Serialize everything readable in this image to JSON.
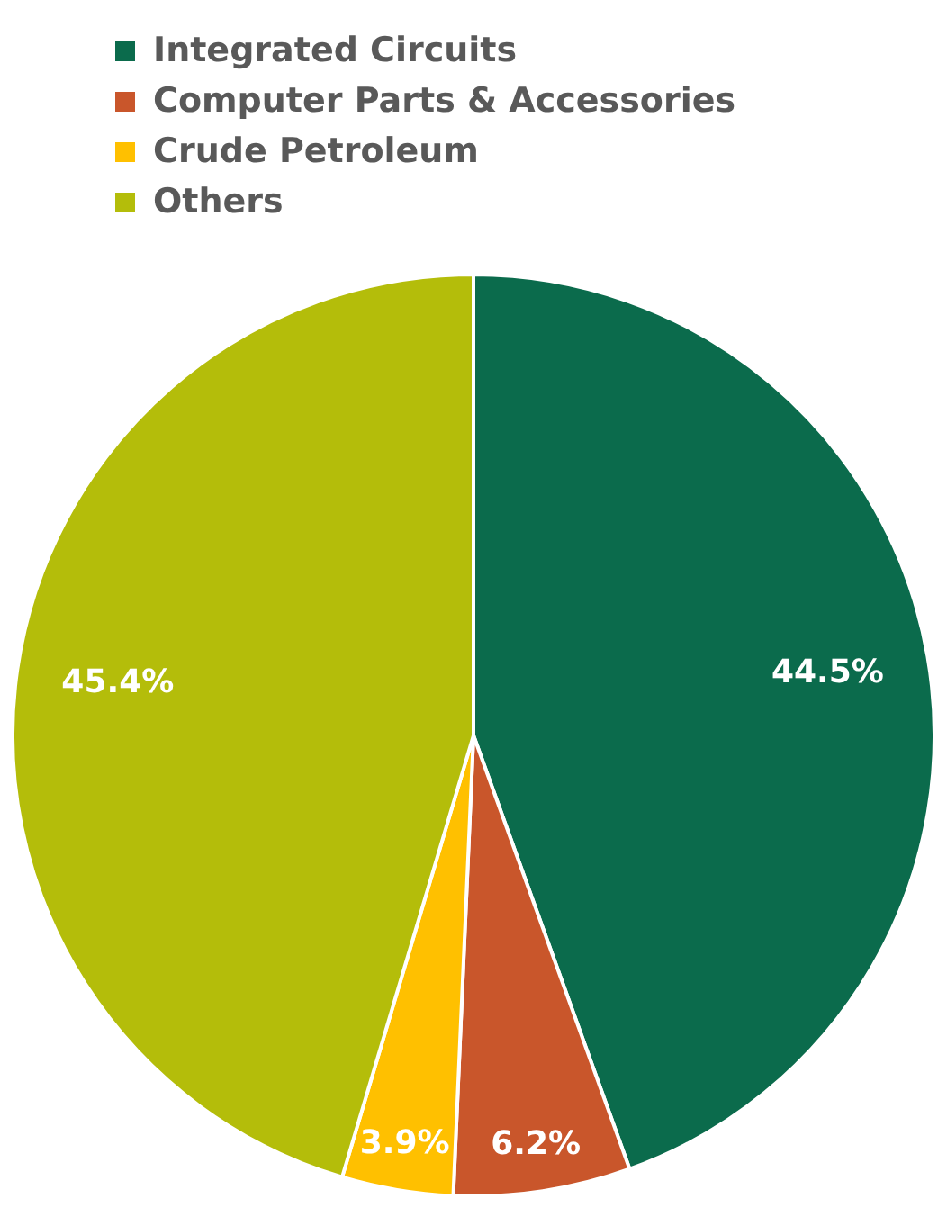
{
  "chart_data": {
    "type": "pie",
    "categories": [
      "Integrated Circuits",
      "Computer Parts & Accessories",
      "Crude Petroleum",
      "Others"
    ],
    "values": [
      44.5,
      6.2,
      3.9,
      45.4
    ],
    "colors": [
      "#0b6b4c",
      "#c9562b",
      "#ffc000",
      "#b4bd0a"
    ],
    "value_labels": [
      "44.5%",
      "6.2%",
      "3.9%",
      "45.4%"
    ],
    "legend": "top left"
  }
}
